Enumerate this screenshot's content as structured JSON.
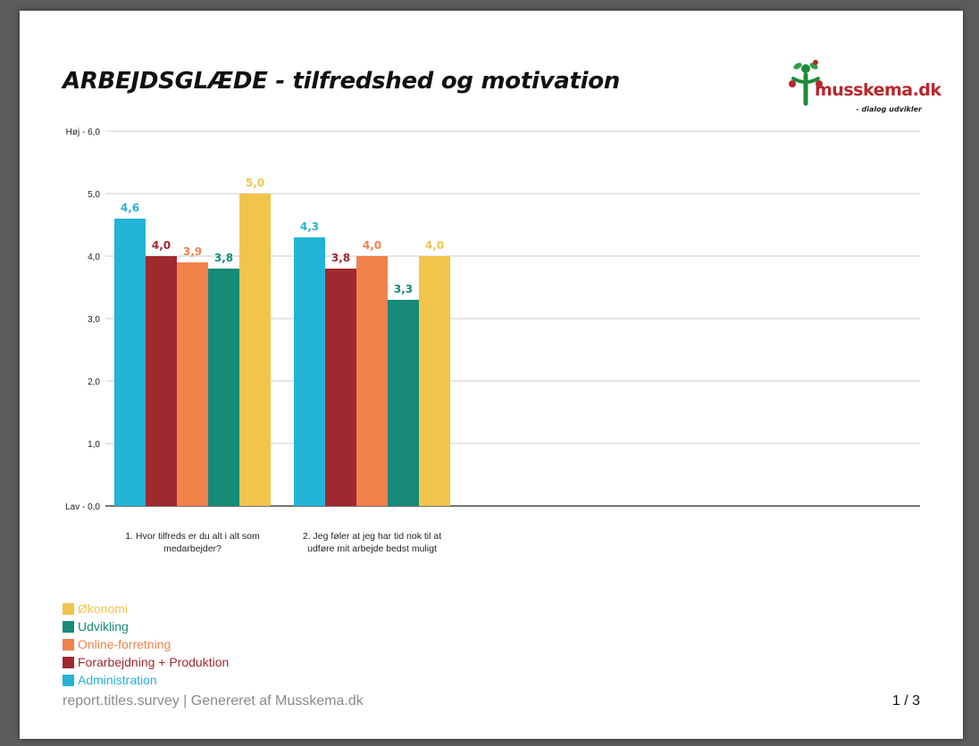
{
  "title": "ARBEJDSGLÆDE - tilfredshed og motivation",
  "logo": {
    "name": "musskema.dk",
    "tagline": "- dialog udvikler"
  },
  "footer": {
    "text": "report.titles.survey | Genereret af Musskema.dk",
    "page": "1 / 3"
  },
  "colors": {
    "Administration": "#23b3d6",
    "Forarbejdning + Produktion": "#a0282f",
    "Online-forretning": "#f0824a",
    "Udvikling": "#178a78",
    "Økonomi": "#f1c44c"
  },
  "chart_data": {
    "type": "bar",
    "title": "ARBEJDSGLÆDE - tilfredshed og motivation",
    "xlabel": "",
    "ylabel": "",
    "ylim": [
      0,
      6
    ],
    "grid": true,
    "legend_position": "bottom-left",
    "y_ticks": [
      {
        "value": 6,
        "label": "Høj - 6,0"
      },
      {
        "value": 5,
        "label": "5,0"
      },
      {
        "value": 4,
        "label": "4,0"
      },
      {
        "value": 3,
        "label": "3,0"
      },
      {
        "value": 2,
        "label": "2,0"
      },
      {
        "value": 1,
        "label": "1,0"
      },
      {
        "value": 0,
        "label": "Lav - 0,0"
      }
    ],
    "categories": [
      [
        "1. Hvor tilfreds er du alt i alt som",
        "medarbejder?"
      ],
      [
        "2. Jeg føler at jeg har tid nok til at",
        "udføre mit arbejde bedst muligt"
      ]
    ],
    "series": [
      {
        "name": "Administration",
        "values": [
          4.6,
          4.3
        ],
        "labels": [
          "4,6",
          "4,3"
        ]
      },
      {
        "name": "Forarbejdning + Produktion",
        "values": [
          4.0,
          3.8
        ],
        "labels": [
          "4,0",
          "3,8"
        ]
      },
      {
        "name": "Online-forretning",
        "values": [
          3.9,
          4.0
        ],
        "labels": [
          "3,9",
          "4,0"
        ]
      },
      {
        "name": "Udvikling",
        "values": [
          3.8,
          3.3
        ],
        "labels": [
          "3,8",
          "3,3"
        ]
      },
      {
        "name": "Økonomi",
        "values": [
          5.0,
          4.0
        ],
        "labels": [
          "5,0",
          "4,0"
        ]
      }
    ],
    "legend_order": [
      "Økonomi",
      "Udvikling",
      "Online-forretning",
      "Forarbejdning + Produktion",
      "Administration"
    ]
  }
}
